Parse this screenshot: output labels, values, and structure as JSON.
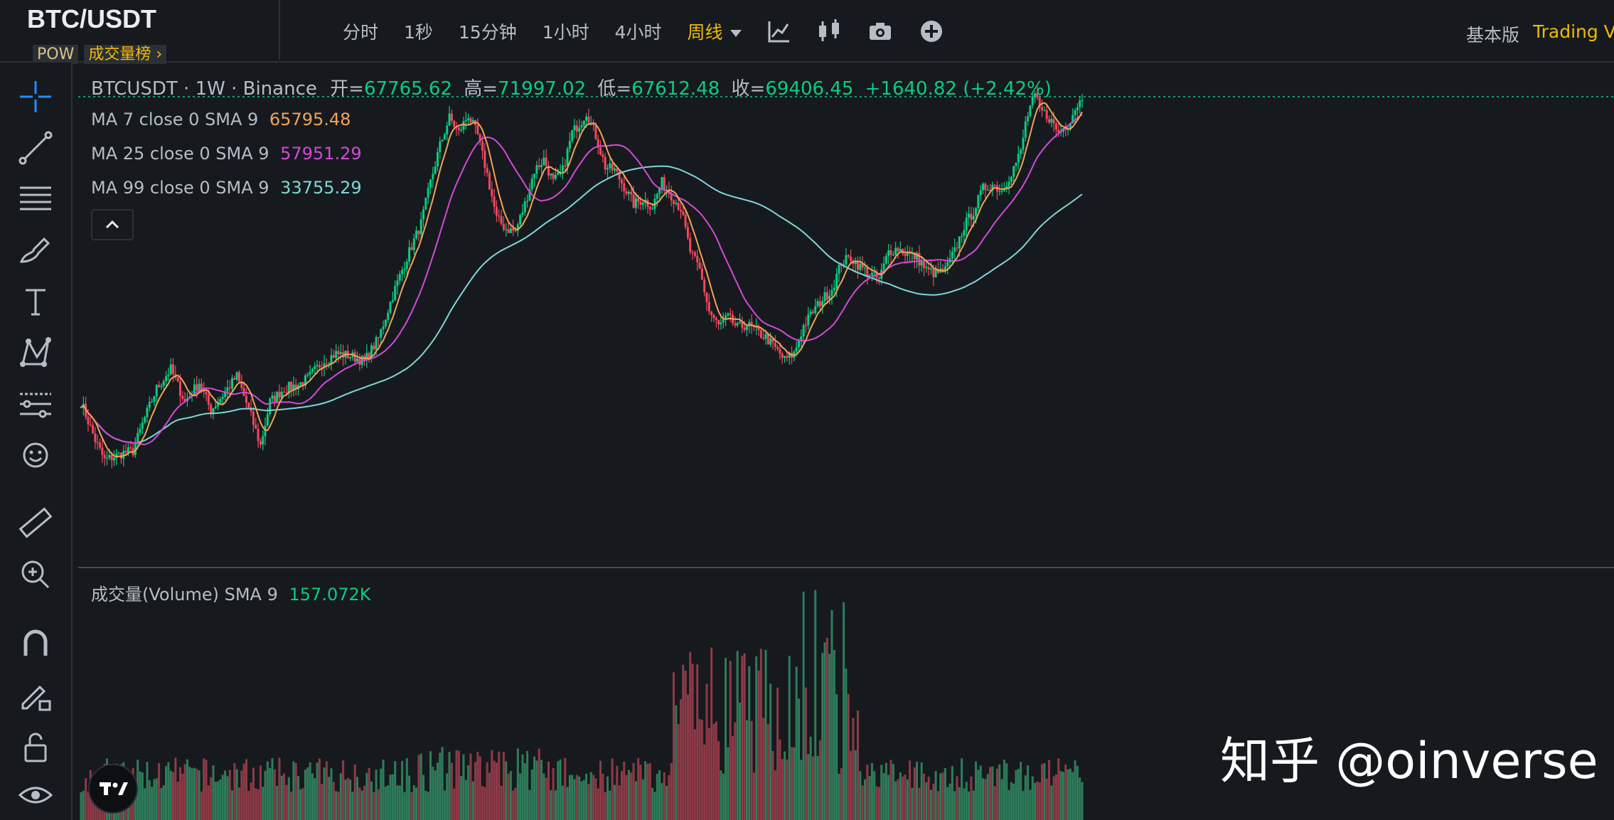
{
  "header": {
    "pair": "BTC/USDT",
    "tag_pow": "POW",
    "tag_rank": "成交量榜 ›",
    "intervals": [
      "分时",
      "1秒",
      "15分钟",
      "1小时",
      "4小时",
      "周线"
    ],
    "active_interval": "周线",
    "version_basic": "基本版",
    "version_tv": "Trading Vi"
  },
  "legend": {
    "symbol": "BTCUSDT · 1W · Binance",
    "open_label": "开=",
    "open": "67765.62",
    "high_label": "高=",
    "high": "71997.02",
    "low_label": "低=",
    "low": "67612.48",
    "close_label": "收=",
    "close": "69406.45",
    "change": "+1640.82 (+2.42%)"
  },
  "ma": [
    {
      "label": "MA 7 close 0 SMA 9",
      "value": "65795.48",
      "color": "#f0a35a"
    },
    {
      "label": "MA 25 close 0 SMA 9",
      "value": "57951.29",
      "color": "#d24ad8"
    },
    {
      "label": "MA 99 close 0 SMA 9",
      "value": "33755.29",
      "color": "#7fd6d8"
    }
  ],
  "volume_legend": {
    "label": "成交量(Volume) SMA 9",
    "value": "157.072K"
  },
  "watermark": "知乎 @oinverse",
  "tools": [
    "crosshair-icon",
    "trend-line-icon",
    "fib-lines-icon",
    "brush-icon",
    "text-icon",
    "pattern-icon",
    "measure-lines-icon",
    "emoji-icon",
    "ruler-icon",
    "zoom-in-icon",
    "magnet-icon",
    "lock-draw-icon",
    "unlock-icon",
    "eye-icon"
  ],
  "colors": {
    "up": "#0ecb81",
    "down": "#f6465d",
    "vol_up": "#2e7d5b",
    "vol_down": "#8f3a47",
    "accent": "#f0b90b"
  },
  "chart_data": {
    "type": "candlestick",
    "interval": "1W",
    "ylim": [
      0,
      76000
    ],
    "last_close": 69406.45,
    "anchors": [
      [
        0,
        13000
      ],
      [
        6,
        10500
      ],
      [
        10,
        9400
      ],
      [
        18,
        9800
      ],
      [
        22,
        9900
      ],
      [
        26,
        11500
      ],
      [
        32,
        14000
      ],
      [
        38,
        15600
      ],
      [
        44,
        13000
      ],
      [
        50,
        14500
      ],
      [
        55,
        12400
      ],
      [
        60,
        13500
      ],
      [
        66,
        15000
      ],
      [
        72,
        12000
      ],
      [
        76,
        10200
      ],
      [
        80,
        13000
      ],
      [
        86,
        14000
      ],
      [
        92,
        14300
      ],
      [
        96,
        14800
      ],
      [
        102,
        16200
      ],
      [
        108,
        17000
      ],
      [
        114,
        16800
      ],
      [
        120,
        16300
      ],
      [
        126,
        18500
      ],
      [
        132,
        23500
      ],
      [
        138,
        29000
      ],
      [
        144,
        35000
      ],
      [
        148,
        44000
      ],
      [
        152,
        54000
      ],
      [
        156,
        63000
      ],
      [
        160,
        58000
      ],
      [
        164,
        64000
      ],
      [
        168,
        57000
      ],
      [
        172,
        46000
      ],
      [
        176,
        36000
      ],
      [
        180,
        34000
      ],
      [
        184,
        33500
      ],
      [
        188,
        39000
      ],
      [
        192,
        47000
      ],
      [
        196,
        50000
      ],
      [
        200,
        44000
      ],
      [
        204,
        47000
      ],
      [
        208,
        58000
      ],
      [
        212,
        62000
      ],
      [
        214,
        65000
      ],
      [
        218,
        57000
      ],
      [
        222,
        48000
      ],
      [
        226,
        47000
      ],
      [
        230,
        43000
      ],
      [
        234,
        39000
      ],
      [
        238,
        40000
      ],
      [
        242,
        38500
      ],
      [
        246,
        44000
      ],
      [
        250,
        41000
      ],
      [
        254,
        38000
      ],
      [
        258,
        30000
      ],
      [
        262,
        27000
      ],
      [
        266,
        21500
      ],
      [
        270,
        19800
      ],
      [
        274,
        20800
      ],
      [
        278,
        19600
      ],
      [
        282,
        20000
      ],
      [
        286,
        19200
      ],
      [
        290,
        18600
      ],
      [
        294,
        17500
      ],
      [
        298,
        16400
      ],
      [
        302,
        17000
      ],
      [
        306,
        19800
      ],
      [
        310,
        21500
      ],
      [
        314,
        23000
      ],
      [
        318,
        24300
      ],
      [
        322,
        28200
      ],
      [
        326,
        29000
      ],
      [
        330,
        27500
      ],
      [
        334,
        26500
      ],
      [
        338,
        25600
      ],
      [
        342,
        30000
      ],
      [
        346,
        30500
      ],
      [
        350,
        29500
      ],
      [
        354,
        29000
      ],
      [
        358,
        27000
      ],
      [
        362,
        26500
      ],
      [
        366,
        27000
      ],
      [
        370,
        30000
      ],
      [
        374,
        34500
      ],
      [
        378,
        37500
      ],
      [
        382,
        42500
      ],
      [
        386,
        43500
      ],
      [
        390,
        42000
      ],
      [
        394,
        46500
      ],
      [
        398,
        52000
      ],
      [
        400,
        61000
      ],
      [
        402,
        67000
      ],
      [
        404,
        71000
      ],
      [
        406,
        66000
      ],
      [
        410,
        63000
      ],
      [
        414,
        58000
      ],
      [
        418,
        61000
      ],
      [
        420,
        64500
      ],
      [
        422,
        68000
      ],
      [
        424,
        69400
      ]
    ],
    "ma7_last": 65795.48,
    "ma25_last": 57951.29,
    "ma99_last": 33755.29,
    "volume_label": "成交量(Volume)",
    "volume_sma9_last": 157.072
  }
}
